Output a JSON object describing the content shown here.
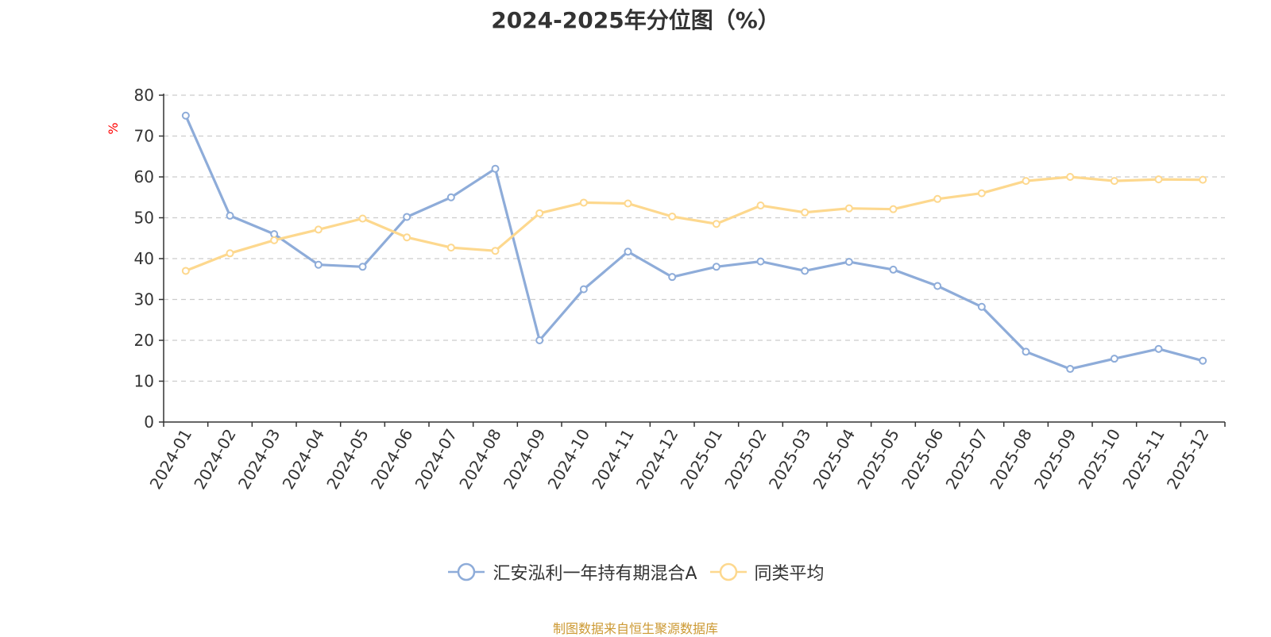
{
  "chart_data": {
    "type": "line",
    "title": "2024-2025年分位图（%）",
    "ylabel": "%",
    "xlabel": "",
    "ylim": [
      0,
      80
    ],
    "yticks": [
      0,
      10,
      20,
      30,
      40,
      50,
      60,
      70,
      80
    ],
    "grid": true,
    "legend_position": "bottom",
    "categories": [
      "2024-01",
      "2024-02",
      "2024-03",
      "2024-04",
      "2024-05",
      "2024-06",
      "2024-07",
      "2024-08",
      "2024-09",
      "2024-10",
      "2024-11",
      "2024-12",
      "2025-01",
      "2025-02",
      "2025-03",
      "2025-04",
      "2025-05",
      "2025-06",
      "2025-07",
      "2025-08",
      "2025-09",
      "2025-10",
      "2025-11",
      "2025-12"
    ],
    "series": [
      {
        "name": "汇安泓利一年持有期混合A",
        "color": "#8eacd9",
        "values": [
          75.0,
          50.5,
          46.0,
          38.5,
          38.0,
          50.2,
          55.0,
          62.0,
          20.0,
          32.5,
          41.7,
          35.5,
          38.0,
          39.3,
          37.0,
          39.2,
          37.3,
          33.3,
          28.2,
          17.2,
          13.0,
          15.5,
          17.9,
          15.0
        ]
      },
      {
        "name": "同类平均",
        "color": "#fdd88e",
        "values": [
          37.0,
          41.3,
          44.5,
          47.1,
          49.8,
          45.2,
          42.7,
          41.9,
          51.1,
          53.7,
          53.5,
          50.3,
          48.5,
          53.0,
          51.3,
          52.3,
          52.1,
          54.6,
          56.0,
          59.0,
          60.0,
          59.0,
          59.4,
          59.3
        ]
      }
    ]
  },
  "source_text": "制图数据来自恒生聚源数据库"
}
